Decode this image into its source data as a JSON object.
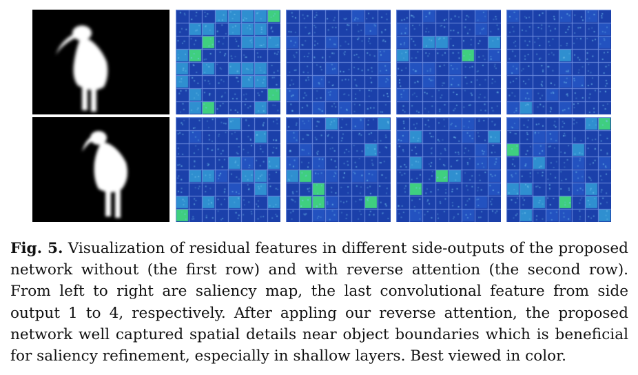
{
  "figure": {
    "rows": [
      {
        "panels": [
          "saliency-map",
          "side-output-1",
          "side-output-2",
          "side-output-3",
          "side-output-4"
        ]
      },
      {
        "panels": [
          "saliency-map",
          "side-output-1",
          "side-output-2",
          "side-output-3",
          "side-output-4"
        ]
      }
    ],
    "colors": {
      "background": "#000000",
      "saliency_foreground": "#ffffff",
      "feature_base": "#1a3ea8",
      "feature_grid_line": "#6f8fe0",
      "feature_high": "#3fcf80"
    }
  },
  "caption": {
    "label": "Fig. 5.",
    "text": "Visualization of residual features in different side-outputs of the proposed network without (the first row) and with reverse attention (the second row). From left to right are saliency map, the last convolutional feature from side output 1 to 4, respectively. After appling our reverse attention, the proposed network well captured spatial details near object boundaries which is beneficial for saliency refinement, especially in shallow layers. Best viewed in color."
  }
}
